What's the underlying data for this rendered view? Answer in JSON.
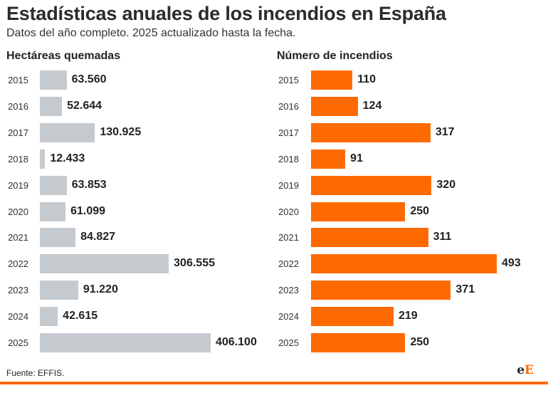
{
  "title": "Estadísticas anuales de los incendios en España",
  "subtitle": "Datos del año completo. 2025 actualizado hasta la fecha.",
  "source": "Fuente: EFFIS.",
  "logo": {
    "part1": "e",
    "part2": "E"
  },
  "colors": {
    "gray_bar": "#c5cacf",
    "orange_bar": "#ff6a00",
    "footer_line": "#ff6a00"
  },
  "chart_data": [
    {
      "type": "bar",
      "orientation": "horizontal",
      "title": "Hectáreas quemadas",
      "categories": [
        "2015",
        "2016",
        "2017",
        "2018",
        "2019",
        "2020",
        "2021",
        "2022",
        "2023",
        "2024",
        "2025"
      ],
      "values": [
        63560,
        52644,
        130925,
        12433,
        63853,
        61099,
        84827,
        306555,
        91220,
        42615,
        406100
      ],
      "labels": [
        "63.560",
        "52.644",
        "130.925",
        "12.433",
        "63.853",
        "61.099",
        "84.827",
        "306.555",
        "91.220",
        "42.615",
        "406.100"
      ],
      "xlim": [
        0,
        406100
      ]
    },
    {
      "type": "bar",
      "orientation": "horizontal",
      "title": "Número de incendios",
      "categories": [
        "2015",
        "2016",
        "2017",
        "2018",
        "2019",
        "2020",
        "2021",
        "2022",
        "2023",
        "2024",
        "2025"
      ],
      "values": [
        110,
        124,
        317,
        91,
        320,
        250,
        311,
        493,
        371,
        219,
        250
      ],
      "labels": [
        "110",
        "124",
        "317",
        "91",
        "320",
        "250",
        "311",
        "493",
        "371",
        "219",
        "250"
      ],
      "xlim": [
        0,
        493
      ]
    }
  ]
}
